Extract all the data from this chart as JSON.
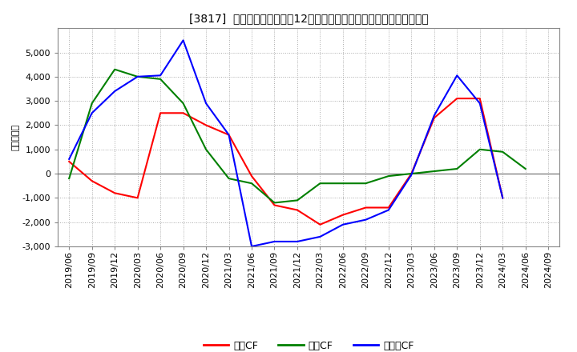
{
  "title": "[3817]  キャッシュフローの12か月移動合計の対前年同期増減額の推移",
  "ylabel": "（百万円）",
  "background_color": "#ffffff",
  "grid_color": "#aaaaaa",
  "x_labels": [
    "2019/06",
    "2019/09",
    "2019/12",
    "2020/03",
    "2020/06",
    "2020/09",
    "2020/12",
    "2021/03",
    "2021/06",
    "2021/09",
    "2021/12",
    "2022/03",
    "2022/06",
    "2022/09",
    "2022/12",
    "2023/03",
    "2023/06",
    "2023/09",
    "2023/12",
    "2024/03",
    "2024/06",
    "2024/09"
  ],
  "series": {
    "営業CF": {
      "color": "#ff0000",
      "values": [
        500,
        -300,
        -800,
        -1000,
        2500,
        2500,
        2000,
        1600,
        -100,
        -1300,
        -1500,
        -2100,
        -1700,
        -1400,
        -1400,
        0,
        2300,
        3100,
        3100,
        -1000,
        null,
        null
      ]
    },
    "投資CF": {
      "color": "#008000",
      "values": [
        -200,
        2900,
        4300,
        4000,
        3900,
        2900,
        1000,
        -200,
        -400,
        -1200,
        -1100,
        -400,
        -400,
        -400,
        -100,
        0,
        100,
        200,
        1000,
        900,
        200,
        null
      ]
    },
    "フリーCF": {
      "color": "#0000ff",
      "values": [
        600,
        2500,
        3400,
        4000,
        4050,
        5500,
        2900,
        1600,
        -3000,
        -2800,
        -2800,
        -2600,
        -2100,
        -1900,
        -1500,
        -50,
        2400,
        4050,
        2900,
        -1000,
        null,
        null
      ]
    }
  },
  "ylim": [
    -3000,
    6000
  ],
  "yticks": [
    -3000,
    -2000,
    -1000,
    0,
    1000,
    2000,
    3000,
    4000,
    5000
  ],
  "legend_labels": [
    "営業CF",
    "投資CF",
    "フリーCF"
  ],
  "legend_colors": [
    "#ff0000",
    "#008000",
    "#0000ff"
  ]
}
